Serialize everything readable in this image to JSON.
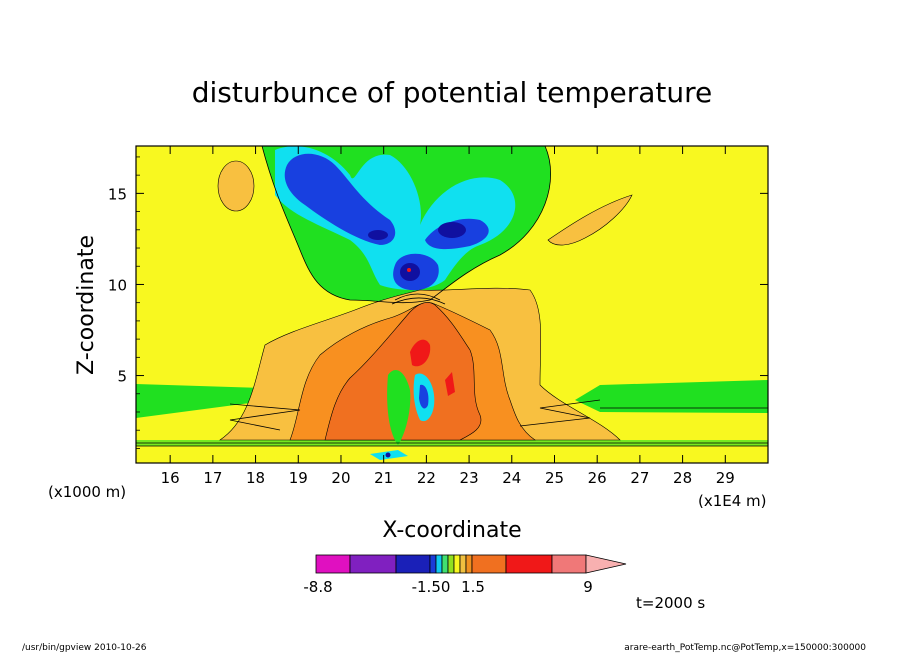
{
  "chart_data": {
    "type": "heatmap",
    "title": "disturbunce of potential temperature",
    "xlabel": "X-coordinate",
    "ylabel": "Z-coordinate",
    "x_unit_left": "(x1000 m)",
    "x_unit_right": "(x1E4 m)",
    "xlim": [
      15.2,
      30.0
    ],
    "ylim": [
      0.2,
      17.6
    ],
    "x_ticks": [
      "16",
      "17",
      "18",
      "19",
      "20",
      "21",
      "22",
      "23",
      "24",
      "25",
      "26",
      "27",
      "28",
      "29"
    ],
    "y_ticks": [
      "5",
      "10",
      "15"
    ],
    "time_label": "t=2000 s",
    "colorbar": {
      "labels": [
        "-8.8",
        "-1.50",
        "1.5",
        "9"
      ],
      "colors": [
        "#e010c0",
        "#8020c0",
        "#1a20b8",
        "#1a3cd8",
        "#10c8f0",
        "#40e070",
        "#90e020",
        "#f8f820",
        "#f0c040",
        "#f09020",
        "#f07020",
        "#f01818",
        "#f07878",
        "#f8b0b0"
      ]
    },
    "fields": {
      "background": "#f8f820",
      "green": "#20e020",
      "cyan": "#10e0f0",
      "blue": "#1840e0",
      "navy": "#1010a0",
      "orange_light": "#f8c040",
      "orange": "#f89020",
      "orange_dark": "#f07020",
      "red": "#f01818"
    },
    "footer_left": "/usr/bin/gpview   2010-10-26",
    "footer_right": "arare-earth_PotTemp.nc@PotTemp,x=150000:300000"
  }
}
